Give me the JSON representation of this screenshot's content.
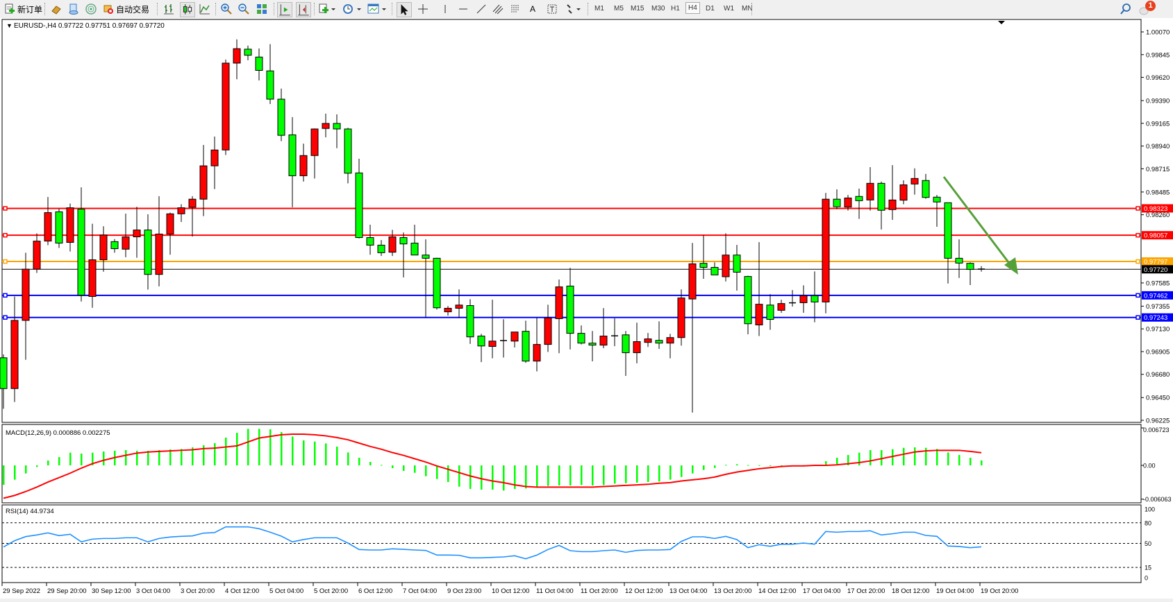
{
  "toolbar": {
    "new_order_label": "新订单",
    "auto_trading_label": "自动交易",
    "timeframes": [
      "M1",
      "M5",
      "M15",
      "M30",
      "H1",
      "H4",
      "D1",
      "W1",
      "MN"
    ],
    "active_timeframe": "H4",
    "notification_count": "1",
    "icons": [
      "new-order-icon",
      "gold-icon",
      "market-watch-icon",
      "signals-icon",
      "auto-trading-icon",
      "bar-chart-icon",
      "candlestick-icon",
      "line-chart-icon",
      "zoom-in-icon",
      "zoom-out-icon",
      "tile-windows-icon",
      "chart-shift-icon",
      "autoscroll-icon",
      "indicators-icon",
      "periods-icon",
      "templates-icon",
      "cursor-icon",
      "crosshair-icon",
      "vertical-line-icon",
      "horizontal-line-icon",
      "trendline-icon",
      "equidistant-channel-icon",
      "fibonacci-icon",
      "text-icon",
      "text-label-icon",
      "arrows-icon",
      "search-icon",
      "notifications-icon"
    ],
    "text_tool_label": "A"
  },
  "main": {
    "symbol_header": "EURUSD-,H4  0.97722 0.97751 0.97697 0.97720",
    "price_ticks": [
      "1.00070",
      "0.99845",
      "0.99620",
      "0.99390",
      "0.99165",
      "0.98940",
      "0.98715",
      "0.98485",
      "0.98260",
      "0.97585",
      "0.97355",
      "0.97130",
      "0.96905",
      "0.96680",
      "0.96450",
      "0.96225"
    ],
    "levels": [
      {
        "price": 0.98323,
        "label": "0.98323",
        "color": "#ff0000"
      },
      {
        "price": 0.98057,
        "label": "0.98057",
        "color": "#ff0000"
      },
      {
        "price": 0.97797,
        "label": "0.97797",
        "color": "#ffa500"
      },
      {
        "price": 0.97462,
        "label": "0.97462",
        "color": "#0000ff"
      },
      {
        "price": 0.97243,
        "label": "0.97243",
        "color": "#0000ff"
      }
    ],
    "current_price": {
      "price": 0.9772,
      "label": "0.97720",
      "color": "#000000"
    },
    "arrow_color": "#56a03a",
    "up_color": "#ff0000",
    "down_color": "#00ff00"
  },
  "macd": {
    "header": "MACD(12,26,9) 0.000886 0.002275",
    "ticks": [
      "0.006723",
      "0.00",
      "-0.006063"
    ],
    "histogram_color": "#00ff00",
    "signal_color": "#ff0000"
  },
  "rsi": {
    "header": "RSI(14) 44.9734",
    "ticks": [
      "100",
      "80",
      "50",
      "15",
      "0"
    ],
    "levels": [
      80,
      50,
      15
    ],
    "line_color": "#1e90ff"
  },
  "chart_data": {
    "type": "candlestick",
    "symbol": "EURUSD-",
    "timeframe": "H4",
    "ylim": [
      0.96225,
      1.0007
    ],
    "time_labels": [
      "29 Sep 2022",
      "29 Sep 20:00",
      "30 Sep 12:00",
      "3 Oct 04:00",
      "3 Oct 20:00",
      "4 Oct 12:00",
      "5 Oct 04:00",
      "5 Oct 20:00",
      "6 Oct 12:00",
      "7 Oct 04:00",
      "9 Oct 23:00",
      "10 Oct 12:00",
      "11 Oct 04:00",
      "11 Oct 20:00",
      "12 Oct 12:00",
      "13 Oct 04:00",
      "13 Oct 20:00",
      "14 Oct 12:00",
      "17 Oct 04:00",
      "17 Oct 20:00",
      "18 Oct 12:00",
      "19 Oct 04:00",
      "19 Oct 20:00"
    ],
    "ohlc": [
      [
        0.96844,
        0.96877,
        0.96339,
        0.96539
      ],
      [
        0.96539,
        0.97451,
        0.96406,
        0.97214
      ],
      [
        0.97214,
        0.97884,
        0.96824,
        0.97721
      ],
      [
        0.97721,
        0.98076,
        0.97684,
        0.97999
      ],
      [
        0.97999,
        0.98436,
        0.97959,
        0.98281
      ],
      [
        0.98289,
        0.98319,
        0.97931,
        0.97979
      ],
      [
        0.97986,
        0.98371,
        0.97896,
        0.98329
      ],
      [
        0.98316,
        0.98531,
        0.97401,
        0.97464
      ],
      [
        0.97451,
        0.98171,
        0.97339,
        0.97814
      ],
      [
        0.97814,
        0.98146,
        0.97696,
        0.98059
      ],
      [
        0.97994,
        0.98019,
        0.97884,
        0.97924
      ],
      [
        0.97919,
        0.98271,
        0.97839,
        0.98041
      ],
      [
        0.98041,
        0.98339,
        0.97834,
        0.98109
      ],
      [
        0.98109,
        0.98264,
        0.97519,
        0.97669
      ],
      [
        0.97669,
        0.98444,
        0.97551,
        0.98069
      ],
      [
        0.98069,
        0.98281,
        0.97864,
        0.98269
      ],
      [
        0.98269,
        0.98364,
        0.98189,
        0.98329
      ],
      [
        0.98334,
        0.98444,
        0.98044,
        0.98414
      ],
      [
        0.98414,
        0.98951,
        0.98246,
        0.98744
      ],
      [
        0.98744,
        0.99034,
        0.98514,
        0.98901
      ],
      [
        0.98901,
        0.99796,
        0.98851,
        0.99761
      ],
      [
        0.99761,
        0.99996,
        0.99601,
        0.99904
      ],
      [
        0.99899,
        0.99934,
        0.99789,
        0.99839
      ],
      [
        0.99821,
        0.99906,
        0.99589,
        0.99689
      ],
      [
        0.99684,
        0.99949,
        0.99356,
        0.99404
      ],
      [
        0.99404,
        0.99509,
        0.98989,
        0.99046
      ],
      [
        0.99051,
        0.99226,
        0.98334,
        0.98646
      ],
      [
        0.98646,
        0.98964,
        0.98589,
        0.98846
      ],
      [
        0.98846,
        0.99114,
        0.98619,
        0.99109
      ],
      [
        0.99114,
        0.99261,
        0.99026,
        0.99164
      ],
      [
        0.99164,
        0.99254,
        0.98919,
        0.99109
      ],
      [
        0.99109,
        0.99121,
        0.98571,
        0.98671
      ],
      [
        0.98674,
        0.98814,
        0.98026,
        0.98034
      ],
      [
        0.98034,
        0.98161,
        0.97864,
        0.97959
      ],
      [
        0.97959,
        0.98009,
        0.97851,
        0.97884
      ],
      [
        0.97889,
        0.98111,
        0.97851,
        0.98041
      ],
      [
        0.98034,
        0.98084,
        0.97639,
        0.97971
      ],
      [
        0.97979,
        0.98161,
        0.97861,
        0.97861
      ],
      [
        0.97861,
        0.98016,
        0.97239,
        0.97829
      ],
      [
        0.97829,
        0.97834,
        0.97321,
        0.97339
      ],
      [
        0.97299,
        0.97356,
        0.97261,
        0.97334
      ],
      [
        0.97334,
        0.97521,
        0.97239,
        0.97366
      ],
      [
        0.97361,
        0.97424,
        0.96981,
        0.97051
      ],
      [
        0.97059,
        0.97081,
        0.96801,
        0.96961
      ],
      [
        0.96956,
        0.97419,
        0.96839,
        0.97009
      ],
      [
        0.97014,
        0.97226,
        0.96846,
        0.97012
      ],
      [
        0.97009,
        0.97099,
        0.96946,
        0.97099
      ],
      [
        0.97106,
        0.97211,
        0.96794,
        0.96811
      ],
      [
        0.96811,
        0.97239,
        0.96709,
        0.96976
      ],
      [
        0.96976,
        0.97369,
        0.96901,
        0.97239
      ],
      [
        0.97231,
        0.97619,
        0.96889,
        0.97546
      ],
      [
        0.97554,
        0.97734,
        0.96926,
        0.97086
      ],
      [
        0.97086,
        0.97164,
        0.96976,
        0.96989
      ],
      [
        0.96989,
        0.97109,
        0.96809,
        0.96969
      ],
      [
        0.96969,
        0.97336,
        0.96939,
        0.97059
      ],
      [
        0.97061,
        0.97234,
        0.96959,
        0.97059
      ],
      [
        0.97071,
        0.97109,
        0.96664,
        0.96894
      ],
      [
        0.96894,
        0.97191,
        0.96789,
        0.97004
      ],
      [
        0.96996,
        0.97089,
        0.96951,
        0.97031
      ],
      [
        0.97016,
        0.97204,
        0.96931,
        0.96989
      ],
      [
        0.96989,
        0.97081,
        0.96839,
        0.97044
      ],
      [
        0.97044,
        0.97521,
        0.96964,
        0.97436
      ],
      [
        0.97426,
        0.97981,
        0.96301,
        0.97774
      ],
      [
        0.97779,
        0.98059,
        0.97626,
        0.97739
      ],
      [
        0.97739,
        0.97789,
        0.97664,
        0.97664
      ],
      [
        0.97646,
        0.98076,
        0.97599,
        0.97861
      ],
      [
        0.97861,
        0.97961,
        0.97509,
        0.97691
      ],
      [
        0.97649,
        0.97656,
        0.97076,
        0.97181
      ],
      [
        0.97169,
        0.97989,
        0.97059,
        0.97374
      ],
      [
        0.97366,
        0.97474,
        0.97121,
        0.97224
      ],
      [
        0.97314,
        0.97419,
        0.97289,
        0.97381
      ],
      [
        0.97386,
        0.97514,
        0.97351,
        0.97388
      ],
      [
        0.97389,
        0.97561,
        0.97289,
        0.97459
      ],
      [
        0.97459,
        0.97699,
        0.97196,
        0.97396
      ],
      [
        0.97396,
        0.98476,
        0.97284,
        0.98414
      ],
      [
        0.98414,
        0.98511,
        0.98314,
        0.98339
      ],
      [
        0.98336,
        0.98456,
        0.98301,
        0.98426
      ],
      [
        0.98441,
        0.98519,
        0.98219,
        0.98399
      ],
      [
        0.98406,
        0.98731,
        0.98301,
        0.98571
      ],
      [
        0.98571,
        0.98589,
        0.98114,
        0.98304
      ],
      [
        0.98311,
        0.98751,
        0.98209,
        0.98406
      ],
      [
        0.98404,
        0.98601,
        0.98364,
        0.98556
      ],
      [
        0.98564,
        0.98719,
        0.98459,
        0.98619
      ],
      [
        0.98599,
        0.98664,
        0.98419,
        0.98431
      ],
      [
        0.98434,
        0.98456,
        0.98141,
        0.98386
      ],
      [
        0.98379,
        0.98379,
        0.97579,
        0.97829
      ],
      [
        0.97829,
        0.98016,
        0.97634,
        0.97781
      ],
      [
        0.97779,
        0.97789,
        0.97564,
        0.97719
      ],
      [
        0.97722,
        0.97751,
        0.97697,
        0.9772
      ]
    ],
    "macd_histogram": [
      -0.00349,
      -0.00257,
      -0.00145,
      -0.00029,
      0.00087,
      0.00149,
      0.00228,
      0.00212,
      0.00228,
      0.00249,
      0.00261,
      0.00274,
      0.00261,
      0.00261,
      0.00274,
      0.00286,
      0.00295,
      0.00324,
      0.00361,
      0.00398,
      0.00498,
      0.00585,
      0.00656,
      0.00656,
      0.00647,
      0.00598,
      0.00519,
      0.00448,
      0.00427,
      0.00394,
      0.00336,
      0.00232,
      0.00137,
      0.00062,
      8e-05,
      -0.0005,
      -0.001,
      -0.00133,
      -0.00195,
      -0.00245,
      -0.00299,
      -0.00382,
      -0.00423,
      -0.00436,
      -0.00436,
      -0.00452,
      -0.00423,
      -0.00415,
      -0.00382,
      -0.00369,
      -0.00361,
      -0.00361,
      -0.00353,
      -0.00361,
      -0.00353,
      -0.00328,
      -0.0032,
      -0.00311,
      -0.00299,
      -0.0029,
      -0.00257,
      -0.00208,
      -0.00145,
      -0.00083,
      -0.00046,
      0.0001,
      0.00021,
      5e-05,
      4e-05,
      -3e-05,
      2e-05,
      -2e-05,
      4e-05,
      3e-05,
      0.00075,
      0.00137,
      0.00187,
      0.00228,
      0.00274,
      0.00274,
      0.0029,
      0.00315,
      0.00324,
      0.00315,
      0.00295,
      0.00232,
      0.00187,
      0.00137,
      0.000886
    ],
    "macd_signal": [
      -0.0059,
      -0.0054,
      -0.0047,
      -0.0039,
      -0.003,
      -0.0022,
      -0.0014,
      -0.0005,
      0.0003,
      0.0009,
      0.0014,
      0.0018,
      0.0022,
      0.0024,
      0.0025,
      0.0026,
      0.0027,
      0.0028,
      0.003,
      0.0031,
      0.0033,
      0.0035,
      0.0042,
      0.0049,
      0.0052,
      0.0055,
      0.0056,
      0.0056,
      0.0055,
      0.0053,
      0.005,
      0.0046,
      0.004,
      0.0034,
      0.0029,
      0.0023,
      0.0018,
      0.0012,
      0.0006,
      -0.0001,
      -0.0007,
      -0.0013,
      -0.0019,
      -0.0024,
      -0.0028,
      -0.0031,
      -0.0035,
      -0.0038,
      -0.0039,
      -0.0039,
      -0.0039,
      -0.0039,
      -0.0039,
      -0.0039,
      -0.0038,
      -0.0037,
      -0.0036,
      -0.0035,
      -0.0034,
      -0.0032,
      -0.0031,
      -0.0028,
      -0.0026,
      -0.0024,
      -0.0021,
      -0.0016,
      -0.0012,
      -0.0009,
      -0.0006,
      -0.0004,
      -0.0002,
      -0.0001,
      -0.0001,
      0,
      0,
      0.0001,
      0.0003,
      0.0005,
      0.0008,
      0.0012,
      0.0016,
      0.002,
      0.0024,
      0.0026,
      0.0027,
      0.0027,
      0.0027,
      0.0025,
      0.002275
    ],
    "macd_ylim": [
      -0.006063,
      0.006723
    ],
    "rsi": [
      44.8,
      53.9,
      59.9,
      62.3,
      65.3,
      61.3,
      63.3,
      52.2,
      56.2,
      57.2,
      57.2,
      58.2,
      58.2,
      52.2,
      57.2,
      59.3,
      60.3,
      60.9,
      65,
      65.7,
      74.1,
      74.1,
      74.1,
      71.4,
      66.3,
      60.6,
      52.2,
      55.6,
      58.2,
      58.2,
      58.2,
      50.5,
      41.1,
      40.4,
      40.4,
      42.1,
      41.4,
      40.4,
      39.7,
      33,
      33,
      32.7,
      29,
      29,
      29.6,
      30.3,
      32,
      27.6,
      33,
      41.1,
      47.1,
      39.4,
      38,
      38,
      39.4,
      40.4,
      37,
      39.7,
      40.4,
      40.4,
      41.1,
      52.9,
      59.6,
      59.6,
      57.2,
      60.3,
      55.6,
      43.8,
      48.1,
      45.8,
      48.8,
      48.8,
      50.5,
      48.8,
      67.3,
      66.3,
      67.3,
      67.3,
      68.4,
      62.3,
      64,
      66.3,
      66.3,
      61.6,
      60.3,
      46.1,
      45.5,
      43.8,
      44.97
    ],
    "rsi_ylim": [
      0,
      100
    ]
  }
}
